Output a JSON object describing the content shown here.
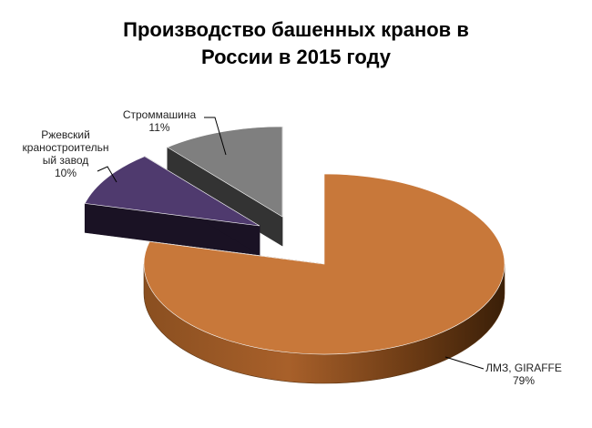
{
  "chart_data": {
    "type": "pie",
    "title_lines": [
      "Производство башенных кранов в",
      "России в 2015 году"
    ],
    "slices": [
      {
        "name": "ЛМЗ, GIRAFFE",
        "value": 79,
        "value_label": "79%",
        "color": "#c8783a",
        "label_lines": [
          "ЛМЗ, GIRAFFE",
          "79%"
        ]
      },
      {
        "name": "Ржевский краностроительный завод",
        "value": 10,
        "value_label": "10%",
        "color": "#4f3a6e",
        "label_lines": [
          "Ржевский",
          "краностроительн",
          "ый завод",
          "10%"
        ]
      },
      {
        "name": "Строммашина",
        "value": 11,
        "value_label": "11%",
        "color": "#7f7f7f",
        "label_lines": [
          "Строммашина",
          "11%"
        ]
      }
    ],
    "style": "3d exploded pie",
    "legend": "none"
  }
}
